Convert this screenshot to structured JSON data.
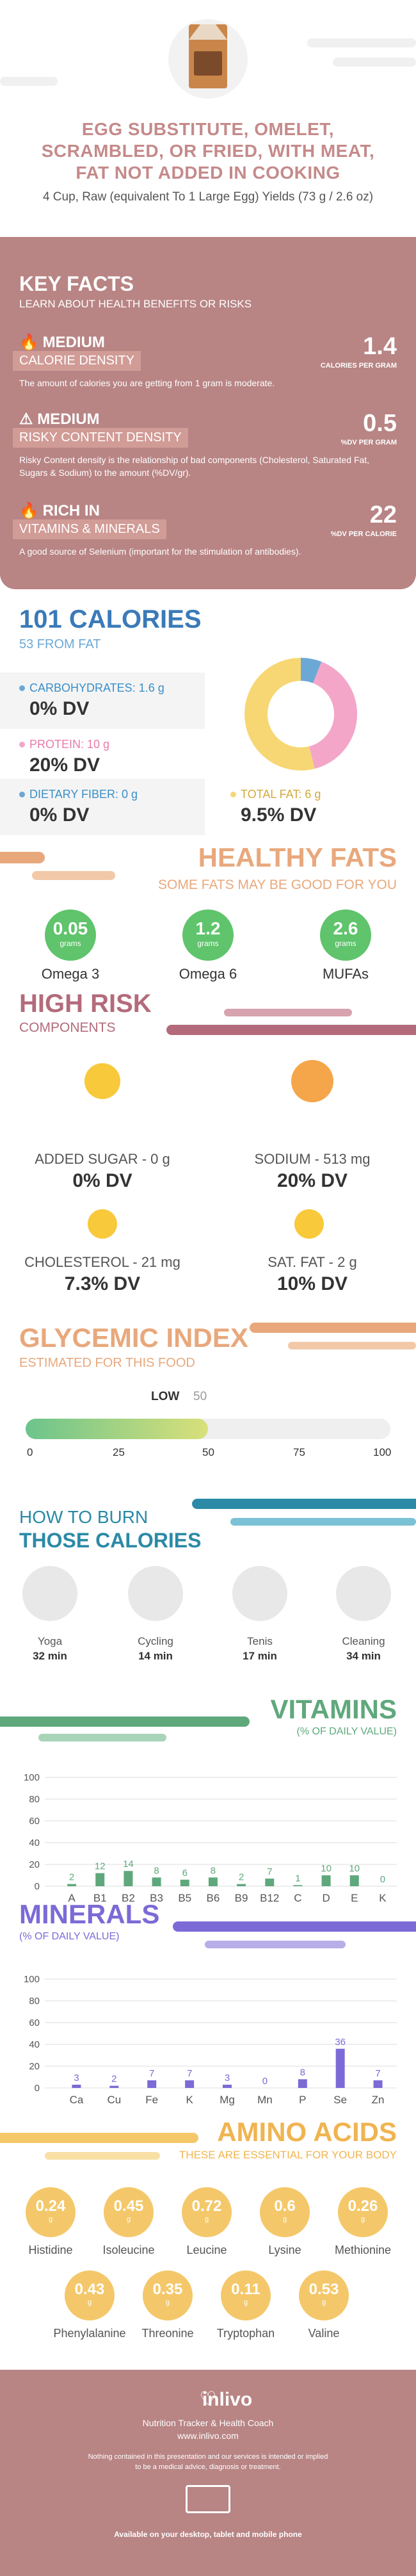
{
  "header": {
    "title": "EGG SUBSTITUTE, OMELET, SCRAMBLED, OR FRIED, WITH MEAT, FAT NOT ADDED IN COOKING",
    "subtitle": "4 Cup, Raw (equivalent To 1 Large Egg) Yields (73 g / 2.6 oz)"
  },
  "key_facts": {
    "title": "KEY FACTS",
    "subtitle": "LEARN ABOUT HEALTH BENEFITS OR RISKS",
    "facts": [
      {
        "badge": "MEDIUM",
        "label": "CALORIE DENSITY",
        "desc": "The amount of calories you are getting from 1 gram is moderate.",
        "value": "1.4",
        "unit": "CALORIES PER GRAM"
      },
      {
        "badge": "MEDIUM",
        "label": "RISKY CONTENT DENSITY",
        "desc": "Risky Content density is the relationship of bad components (Cholesterol, Saturated Fat, Sugars & Sodium) to the amount (%DV/gr).",
        "value": "0.5",
        "unit": "%DV PER GRAM"
      },
      {
        "badge": "RICH IN",
        "label": "VITAMINS & MINERALS",
        "desc": "A good source of Selenium (important for the stimulation of antibodies).",
        "value": "22",
        "unit": "%DV PER CALORIE"
      }
    ]
  },
  "calories": {
    "title": "101 CALORIES",
    "subtitle": "53 FROM FAT",
    "carbs": {
      "label": "CARBOHYDRATES: 1.6 g",
      "dv": "0% DV",
      "color": "#6ca8d6"
    },
    "protein": {
      "label": "PROTEIN: 10 g",
      "dv": "20% DV",
      "color": "#f4a6c8"
    },
    "fiber": {
      "label": "DIETARY FIBER: 0 g",
      "dv": "0% DV",
      "color": "#6ca8d6"
    },
    "fat": {
      "label": "TOTAL FAT: 6 g",
      "dv": "9.5% DV",
      "color": "#f7d774"
    },
    "donut": [
      {
        "name": "carbs",
        "value": 6,
        "color": "#6ca8d6"
      },
      {
        "name": "protein",
        "value": 40,
        "color": "#f4a6c8"
      },
      {
        "name": "fat",
        "value": 54,
        "color": "#f7d774"
      }
    ]
  },
  "healthy_fats": {
    "title": "HEALTHY FATS",
    "subtitle": "SOME FATS MAY BE GOOD FOR YOU",
    "items": [
      {
        "value": "0.05",
        "unit": "grams",
        "name": "Omega 3"
      },
      {
        "value": "1.2",
        "unit": "grams",
        "name": "Omega 6"
      },
      {
        "value": "2.6",
        "unit": "grams",
        "name": "MUFAs"
      }
    ]
  },
  "high_risk": {
    "title": "HIGH RISK",
    "subtitle": "COMPONENTS",
    "items": [
      {
        "label": "ADDED SUGAR - 0 g",
        "dv": "0% DV"
      },
      {
        "label": "SODIUM - 513 mg",
        "dv": "20% DV"
      },
      {
        "label": "CHOLESTEROL - 21 mg",
        "dv": "7.3% DV"
      },
      {
        "label": "SAT. FAT - 2 g",
        "dv": "10% DV"
      }
    ]
  },
  "glycemic": {
    "title": "GLYCEMIC INDEX",
    "subtitle": "ESTIMATED FOR THIS FOOD",
    "level": "LOW",
    "value": "50",
    "ticks": [
      "0",
      "25",
      "50",
      "75",
      "100"
    ]
  },
  "burn": {
    "title1": "HOW TO BURN",
    "title2": "THOSE CALORIES",
    "activities": [
      {
        "name": "Yoga",
        "min": "32 min"
      },
      {
        "name": "Cycling",
        "min": "14 min"
      },
      {
        "name": "Tenis",
        "min": "17 min"
      },
      {
        "name": "Cleaning",
        "min": "34 min"
      }
    ]
  },
  "vitamins": {
    "title": "VITAMINS",
    "subtitle": "(% OF DAILY VALUE)"
  },
  "minerals": {
    "title": "MINERALS",
    "subtitle": "(% OF DAILY VALUE)"
  },
  "chart_data": [
    {
      "type": "bar",
      "title": "VITAMINS",
      "categories": [
        "A",
        "B1",
        "B2",
        "B3",
        "B5",
        "B6",
        "B9",
        "B12",
        "C",
        "D",
        "E",
        "K"
      ],
      "values": [
        2,
        12,
        14,
        8,
        6,
        8,
        2,
        7,
        1,
        10,
        10,
        0
      ],
      "ylim": [
        0,
        100
      ],
      "yticks": [
        "0",
        "20",
        "40",
        "60",
        "80",
        "100"
      ],
      "color": "#5fa87c"
    },
    {
      "type": "bar",
      "title": "MINERALS",
      "categories": [
        "Ca",
        "Cu",
        "Fe",
        "K",
        "Mg",
        "Mn",
        "P",
        "Se",
        "Zn"
      ],
      "values": [
        3,
        2,
        7,
        7,
        3,
        0,
        8,
        36,
        7
      ],
      "ylim": [
        0,
        100
      ],
      "yticks": [
        "0",
        "20",
        "40",
        "60",
        "80",
        "100"
      ],
      "color": "#7c6ad6"
    }
  ],
  "amino": {
    "title": "AMINO ACIDS",
    "subtitle": "THESE ARE ESSENTIAL FOR YOUR BODY",
    "items": [
      {
        "value": "0.24",
        "unit": "g",
        "name": "Histidine"
      },
      {
        "value": "0.45",
        "unit": "g",
        "name": "Isoleucine"
      },
      {
        "value": "0.72",
        "unit": "g",
        "name": "Leucine"
      },
      {
        "value": "0.6",
        "unit": "g",
        "name": "Lysine"
      },
      {
        "value": "0.26",
        "unit": "g",
        "name": "Methionine"
      },
      {
        "value": "0.43",
        "unit": "g",
        "name": "Phenylalanine"
      },
      {
        "value": "0.35",
        "unit": "g",
        "name": "Threonine"
      },
      {
        "value": "0.11",
        "unit": "g",
        "name": "Tryptophan"
      },
      {
        "value": "0.53",
        "unit": "g",
        "name": "Valine"
      }
    ]
  },
  "footer": {
    "brand": "inlivo",
    "tagline": "Nutrition Tracker & Health Coach",
    "url": "www.inlivo.com",
    "disclaimer1": "Nothing contained in this presentation and our services is intended or implied",
    "disclaimer2": "to be a medical advice, diagnosis or treatment.",
    "available": "Available on your desktop, tablet and mobile phone"
  }
}
